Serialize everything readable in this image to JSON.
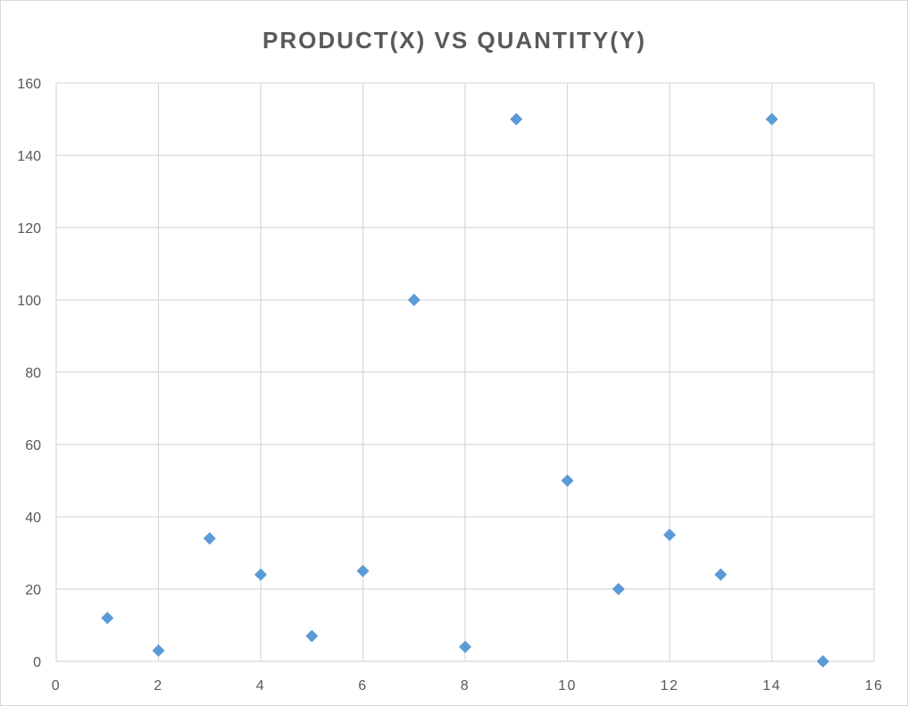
{
  "chart_data": {
    "type": "scatter",
    "title": "PRODUCT(X)  VS QUANTITY(Y)",
    "xlabel": "",
    "ylabel": "",
    "xlim": [
      0,
      16
    ],
    "ylim": [
      0,
      160
    ],
    "x_ticks": [
      "0",
      "2",
      "4",
      "6",
      "8",
      "10",
      "12",
      "14",
      "16"
    ],
    "y_ticks": [
      "0",
      "20",
      "40",
      "60",
      "80",
      "100",
      "120",
      "140",
      "160"
    ],
    "grid": true,
    "legend": "none",
    "marker": "diamond",
    "color": "#5b9bd5",
    "series": [
      {
        "x": [
          1,
          2,
          3,
          4,
          5,
          6,
          7,
          8,
          9,
          10,
          11,
          12,
          13,
          14,
          15
        ],
        "y": [
          12,
          3,
          34,
          24,
          7,
          25,
          100,
          4,
          150,
          50,
          20,
          35,
          24,
          150,
          0
        ]
      }
    ]
  }
}
